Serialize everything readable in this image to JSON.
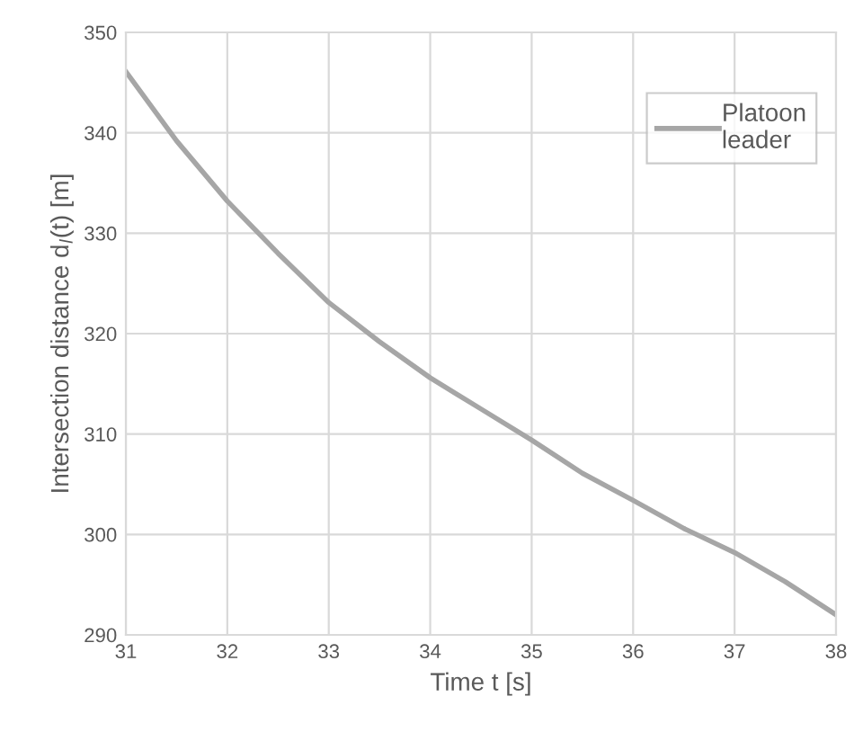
{
  "chart_data": {
    "type": "line",
    "xlabel": "Time t [s]",
    "ylabel": "Intersection distance d$_{l}$(t) [m]",
    "x": [
      31,
      31.5,
      32,
      32.5,
      33,
      33.5,
      34,
      34.5,
      35,
      35.5,
      36,
      36.5,
      37,
      37.5,
      38
    ],
    "series": [
      {
        "name": "Platoon\nleader",
        "color": "#a6a6a6",
        "values": [
          346.1,
          339.2,
          333.2,
          328,
          323.1,
          319.2,
          315.6,
          312.5,
          309.4,
          306.1,
          303.4,
          300.6,
          298.2,
          295.3,
          292
        ]
      }
    ],
    "xlim": [
      31,
      38
    ],
    "xticks": [
      31,
      32,
      33,
      34,
      35,
      36,
      37,
      38
    ],
    "ylim": [
      290,
      350
    ],
    "yticks": [
      290,
      300,
      310,
      320,
      330,
      340,
      350
    ],
    "grid": true,
    "legend": "top right",
    "marker": "none",
    "line_style": "solid"
  }
}
